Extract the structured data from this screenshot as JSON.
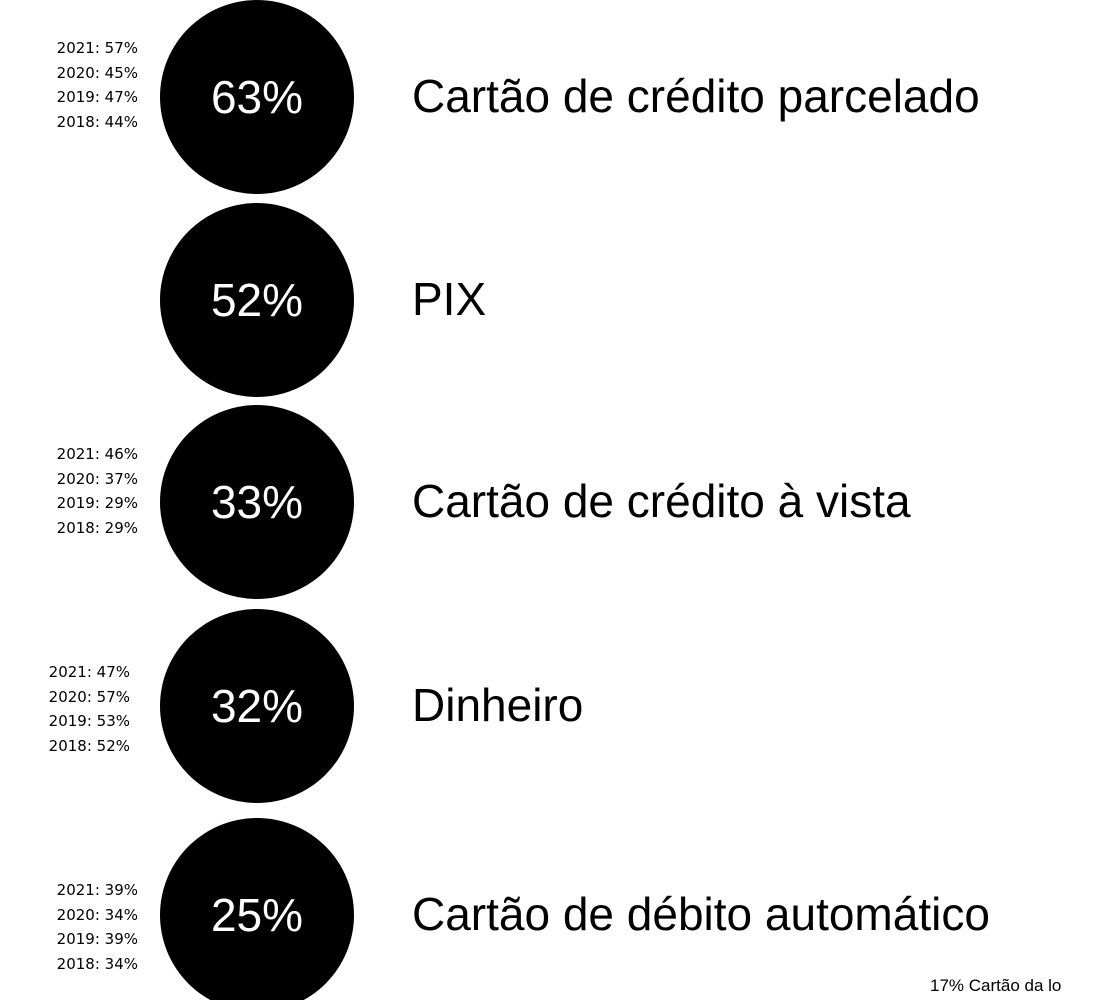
{
  "items": [
    {
      "value": "63%",
      "label": "Cartão de crédito parcelado",
      "history": [
        "2021: 57%",
        "2020: 45%",
        "2019: 47%",
        "2018: 44%"
      ]
    },
    {
      "value": "52%",
      "label": "PIX",
      "history": []
    },
    {
      "value": "33%",
      "label": "Cartão de crédito à vista",
      "history": [
        "2021: 46%",
        "2020: 37%",
        "2019: 29%",
        "2018: 29%"
      ]
    },
    {
      "value": "32%",
      "label": "Dinheiro",
      "history": [
        "2021: 47%",
        "2020: 57%",
        "2019: 53%",
        "2018: 52%"
      ]
    },
    {
      "value": "25%",
      "label": "Cartão de débito automático",
      "history": [
        "2021: 39%",
        "2020: 34%",
        "2019: 39%",
        "2018: 34%"
      ]
    }
  ],
  "footer": "17% Cartão da lo"
}
